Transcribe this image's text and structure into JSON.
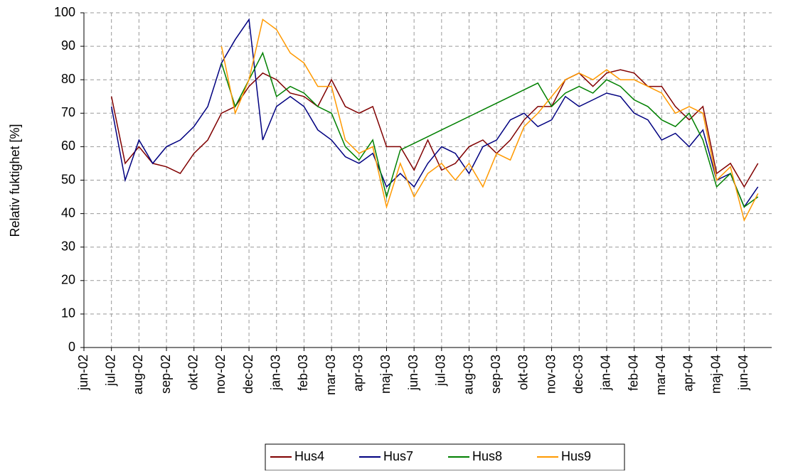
{
  "chart_data": {
    "type": "line",
    "y_label": "Relativ fuktighet [%]",
    "x": [
      1,
      1.5,
      2,
      2.5,
      3,
      3.5,
      4,
      4.5,
      5,
      5.5,
      6,
      6.5,
      7,
      7.5,
      8,
      8.5,
      9,
      9.5,
      10,
      10.5,
      11,
      11.5,
      12,
      12.5,
      13,
      13.5,
      14,
      14.5,
      15,
      15.5,
      16,
      16.5,
      17,
      17.5,
      18,
      18.5,
      19,
      19.5,
      20,
      20.5,
      21,
      21.5,
      22,
      22.5,
      23,
      23.5,
      24,
      24.5
    ],
    "series": [
      {
        "name": "Hus4",
        "color": "#800000",
        "values": [
          75,
          55,
          60,
          55,
          54,
          52,
          58,
          62,
          70,
          72,
          78,
          82,
          80,
          76,
          75,
          72,
          80,
          72,
          70,
          72,
          60,
          60,
          53,
          62,
          53,
          55,
          60,
          62,
          58,
          62,
          68,
          72,
          72,
          80,
          82,
          78,
          82,
          83,
          82,
          78,
          78,
          72,
          68,
          72,
          52,
          55,
          48,
          55
        ]
      },
      {
        "name": "Hus7",
        "color": "#000080",
        "values": [
          72,
          50,
          62,
          55,
          60,
          62,
          66,
          72,
          85,
          92,
          98,
          62,
          72,
          75,
          72,
          65,
          62,
          57,
          55,
          58,
          48,
          52,
          48,
          55,
          60,
          58,
          52,
          60,
          62,
          68,
          70,
          66,
          68,
          75,
          72,
          74,
          76,
          75,
          70,
          68,
          62,
          64,
          60,
          65,
          50,
          52,
          42,
          48
        ]
      },
      {
        "name": "Hus8",
        "color": "#008000",
        "values": [
          null,
          null,
          null,
          null,
          null,
          null,
          null,
          null,
          85,
          72,
          80,
          88,
          75,
          78,
          76,
          72,
          70,
          60,
          56,
          62,
          45,
          59,
          61,
          63,
          65,
          67,
          69,
          71,
          73,
          75,
          77,
          79,
          72,
          76,
          78,
          76,
          80,
          78,
          74,
          72,
          68,
          66,
          70,
          62,
          48,
          52,
          42,
          45
        ]
      },
      {
        "name": "Hus9",
        "color": "#ff9900",
        "values": [
          null,
          null,
          null,
          null,
          null,
          null,
          null,
          null,
          90,
          70,
          80,
          98,
          95,
          88,
          85,
          78,
          78,
          62,
          58,
          60,
          42,
          55,
          45,
          52,
          55,
          50,
          55,
          48,
          58,
          56,
          66,
          70,
          75,
          80,
          82,
          80,
          83,
          80,
          80,
          78,
          76,
          70,
          72,
          70,
          50,
          54,
          38,
          46
        ]
      }
    ],
    "xlim": [
      0,
      25
    ],
    "xticks": [
      {
        "value": 0,
        "label": "jun-02"
      },
      {
        "value": 1,
        "label": "jul-02"
      },
      {
        "value": 2,
        "label": "aug-02"
      },
      {
        "value": 3,
        "label": "sep-02"
      },
      {
        "value": 4,
        "label": "okt-02"
      },
      {
        "value": 5,
        "label": "nov-02"
      },
      {
        "value": 6,
        "label": "dec-02"
      },
      {
        "value": 7,
        "label": "jan-03"
      },
      {
        "value": 8,
        "label": "feb-03"
      },
      {
        "value": 9,
        "label": "mar-03"
      },
      {
        "value": 10,
        "label": "apr-03"
      },
      {
        "value": 11,
        "label": "maj-03"
      },
      {
        "value": 12,
        "label": "jun-03"
      },
      {
        "value": 13,
        "label": "jul-03"
      },
      {
        "value": 14,
        "label": "aug-03"
      },
      {
        "value": 15,
        "label": "sep-03"
      },
      {
        "value": 16,
        "label": "okt-03"
      },
      {
        "value": 17,
        "label": "nov-03"
      },
      {
        "value": 18,
        "label": "dec-03"
      },
      {
        "value": 19,
        "label": "jan-04"
      },
      {
        "value": 20,
        "label": "feb-04"
      },
      {
        "value": 21,
        "label": "mar-04"
      },
      {
        "value": 22,
        "label": "apr-04"
      },
      {
        "value": 23,
        "label": "maj-04"
      },
      {
        "value": 24,
        "label": "jun-04"
      }
    ],
    "ylim": [
      0,
      100
    ],
    "yticks": [
      0,
      10,
      20,
      30,
      40,
      50,
      60,
      70,
      80,
      90,
      100
    ],
    "grid": true,
    "legend": "bottom"
  }
}
